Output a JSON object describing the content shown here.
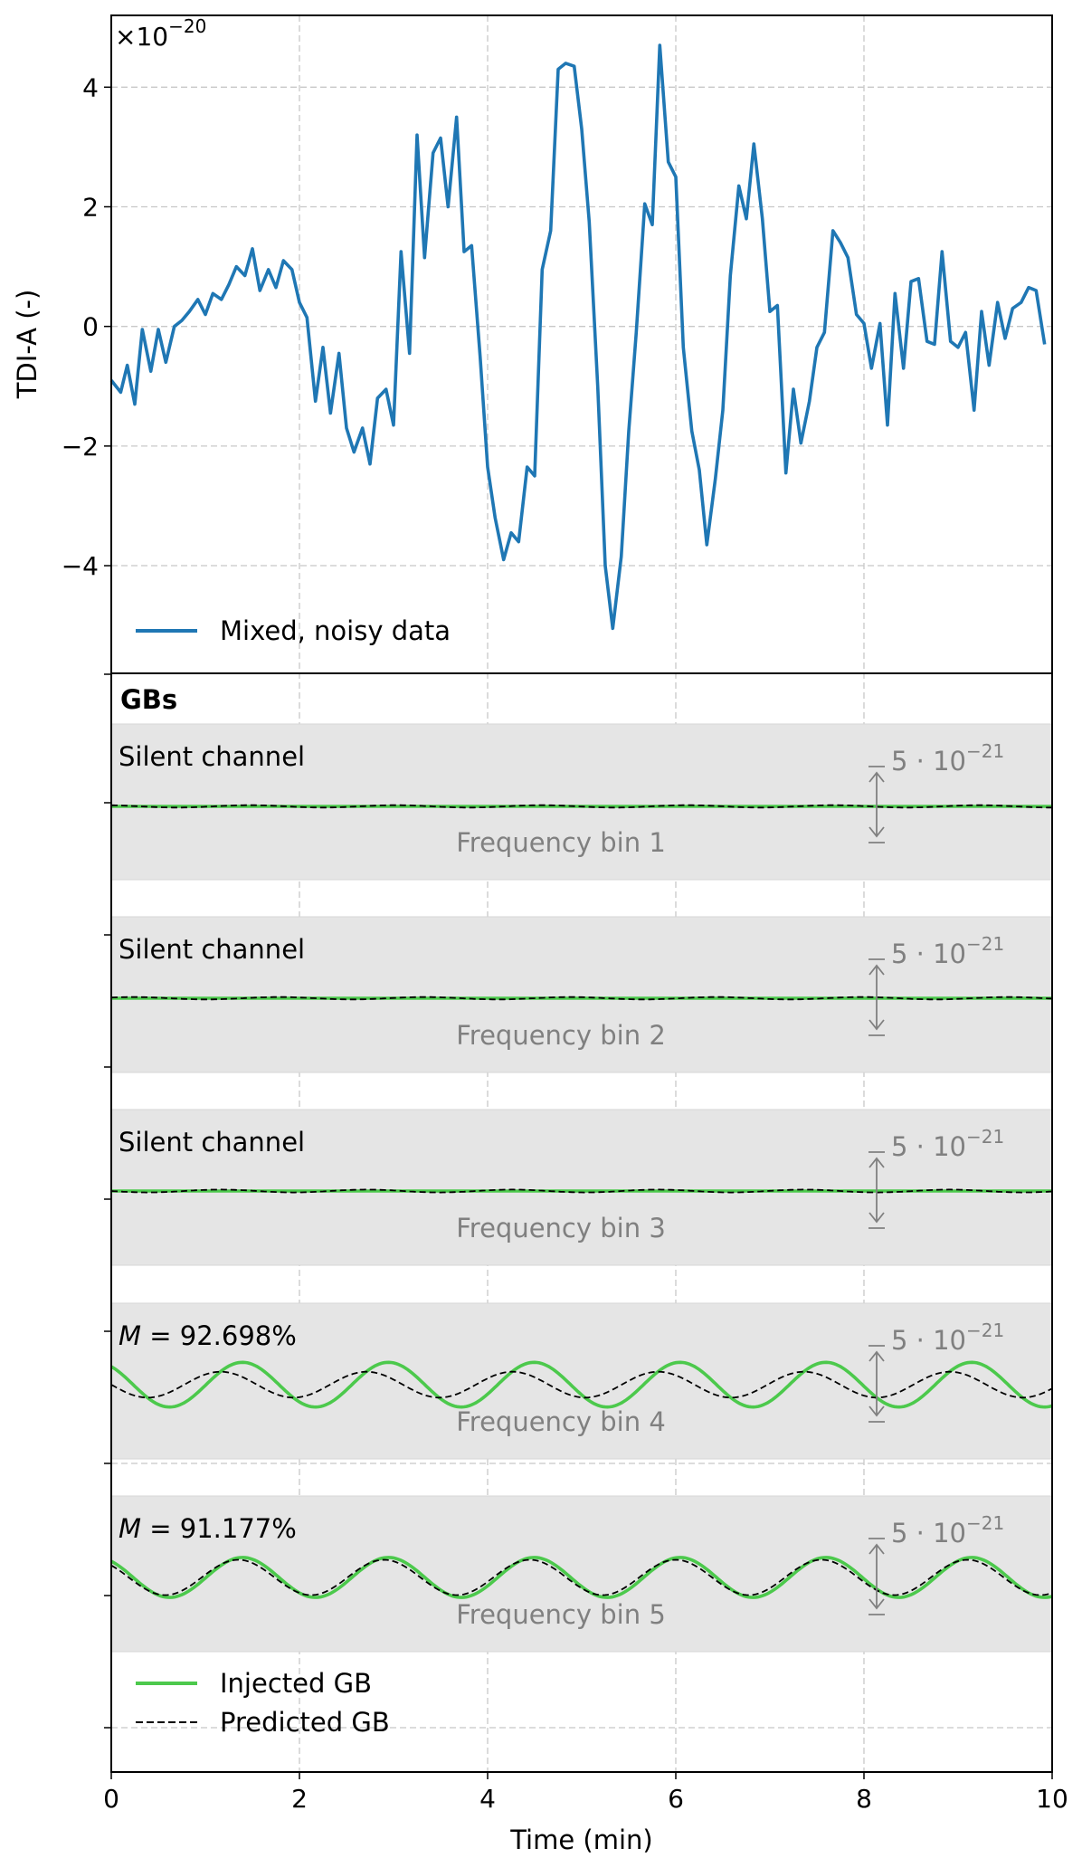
{
  "chart_data": [
    {
      "type": "line",
      "ylabel": "TDI-A (-)",
      "xlim": [
        0,
        10
      ],
      "ylim": [
        -5.8,
        5.2
      ],
      "y_multiplier": "×10",
      "y_multiplier_exp": "−20",
      "xticks": [
        0,
        2,
        4,
        6,
        8,
        10
      ],
      "yticks": [
        -4,
        -2,
        0,
        2,
        4
      ],
      "ytick_labels": [
        "−4",
        "−2",
        "0",
        "2",
        "4"
      ],
      "grid": true,
      "legend_position": "lower-left",
      "series": [
        {
          "name": "Mixed, noisy data",
          "color": "#1f77b4",
          "x": [
            0,
            0.1,
            0.17,
            0.25,
            0.33,
            0.42,
            0.5,
            0.58,
            0.67,
            0.75,
            0.83,
            0.92,
            1.0,
            1.08,
            1.17,
            1.25,
            1.33,
            1.42,
            1.5,
            1.58,
            1.67,
            1.75,
            1.83,
            1.92,
            2.0,
            2.08,
            2.17,
            2.25,
            2.33,
            2.42,
            2.5,
            2.58,
            2.67,
            2.75,
            2.83,
            2.92,
            3.0,
            3.08,
            3.17,
            3.25,
            3.33,
            3.42,
            3.5,
            3.58,
            3.67,
            3.75,
            3.83,
            3.92,
            4.0,
            4.08,
            4.17,
            4.25,
            4.33,
            4.42,
            4.5,
            4.58,
            4.67,
            4.75,
            4.83,
            4.92,
            5.0,
            5.08,
            5.17,
            5.25,
            5.33,
            5.42,
            5.5,
            5.58,
            5.67,
            5.75,
            5.83,
            5.92,
            6.0,
            6.08,
            6.17,
            6.25,
            6.33,
            6.42,
            6.5,
            6.58,
            6.67,
            6.75,
            6.83,
            6.92,
            7.0,
            7.08,
            7.17,
            7.25,
            7.33,
            7.42,
            7.5,
            7.58,
            7.67,
            7.75,
            7.83,
            7.92,
            8.0,
            8.08,
            8.17,
            8.25,
            8.33,
            8.42,
            8.5,
            8.58,
            8.67,
            8.75,
            8.83,
            8.92,
            9.0,
            9.08,
            9.17,
            9.25,
            9.33,
            9.42,
            9.5,
            9.58,
            9.67,
            9.75,
            9.83,
            9.92
          ],
          "y": [
            -0.9,
            -1.1,
            -0.65,
            -1.3,
            -0.05,
            -0.75,
            -0.05,
            -0.6,
            0.0,
            0.1,
            0.25,
            0.45,
            0.2,
            0.55,
            0.45,
            0.7,
            1.0,
            0.85,
            1.3,
            0.6,
            0.95,
            0.65,
            1.1,
            0.95,
            0.4,
            0.15,
            -1.25,
            -0.35,
            -1.45,
            -0.45,
            -1.7,
            -2.1,
            -1.7,
            -2.3,
            -1.2,
            -1.05,
            -1.65,
            1.25,
            -0.45,
            3.2,
            1.15,
            2.9,
            3.15,
            2.0,
            3.5,
            1.25,
            1.35,
            -0.5,
            -2.35,
            -3.2,
            -3.9,
            -3.45,
            -3.6,
            -2.35,
            -2.5,
            0.95,
            1.6,
            4.3,
            4.4,
            4.35,
            3.3,
            1.75,
            -1.0,
            -4.0,
            -5.05,
            -3.85,
            -1.75,
            -0.1,
            2.05,
            1.7,
            4.7,
            2.75,
            2.5,
            -0.35,
            -1.75,
            -2.4,
            -3.65,
            -2.55,
            -1.4,
            0.85,
            2.35,
            1.8,
            3.05,
            1.8,
            0.25,
            0.35,
            -2.45,
            -1.05,
            -1.95,
            -1.25,
            -0.35,
            -0.1,
            1.6,
            1.4,
            1.15,
            0.2,
            0.05,
            -0.7,
            0.05,
            -1.65,
            0.55,
            -0.7,
            0.75,
            0.8,
            -0.25,
            -0.3,
            1.25,
            -0.25,
            -0.35,
            -0.1,
            -1.4,
            0.25,
            -0.65,
            0.4,
            -0.2,
            0.3,
            0.4,
            0.65,
            0.6,
            -0.3
          ]
        }
      ]
    },
    {
      "type": "line",
      "xlabel": "Time (min)",
      "xlim": [
        0,
        10
      ],
      "xticks": [
        0,
        2,
        4,
        6,
        8,
        10
      ],
      "title": "GBs",
      "grid": true,
      "legend_position": "lower-left",
      "scale_bar": {
        "label": "5 · 10",
        "exponent": "−21",
        "value": 5e-21
      },
      "series": [
        {
          "name": "Injected GB",
          "color": "#4cc94c"
        },
        {
          "name": "Predicted GB",
          "color": "#000000",
          "style": "dashed"
        }
      ],
      "panels": [
        {
          "bin_label": "Frequency bin 1",
          "annotation": "Silent channel",
          "injected": {
            "amp": 0.0,
            "period": 1.55,
            "phase": 0.0
          },
          "predicted": {
            "amp": 0.05,
            "period": 1.55,
            "phase": 0.3
          }
        },
        {
          "bin_label": "Frequency bin 2",
          "annotation": "Silent channel",
          "injected": {
            "amp": 0.0,
            "period": 1.55,
            "phase": 0.0
          },
          "predicted": {
            "amp": 0.05,
            "period": 1.55,
            "phase": 0.1
          }
        },
        {
          "bin_label": "Frequency bin 3",
          "annotation": "Silent channel",
          "injected": {
            "amp": 0.0,
            "period": 1.55,
            "phase": 0.0
          },
          "predicted": {
            "amp": 0.06,
            "period": 1.55,
            "phase": 0.5
          }
        },
        {
          "bin_label": "Frequency bin 4",
          "annotation": "M = 92.698%",
          "annotation_parts": {
            "var": "M",
            "rest": " = 92.698%"
          },
          "injected": {
            "amp": 0.95,
            "period": 1.55,
            "phase": 0.35
          },
          "predicted": {
            "amp": 0.55,
            "period": 1.55,
            "phase": 0.5
          }
        },
        {
          "bin_label": "Frequency bin 5",
          "annotation": "M = 91.177%",
          "annotation_parts": {
            "var": "M",
            "rest": " = 91.177%"
          },
          "injected": {
            "amp": 0.85,
            "period": 1.55,
            "phase": 0.35
          },
          "predicted": {
            "amp": 0.75,
            "period": 1.55,
            "phase": 0.38
          }
        }
      ]
    }
  ]
}
